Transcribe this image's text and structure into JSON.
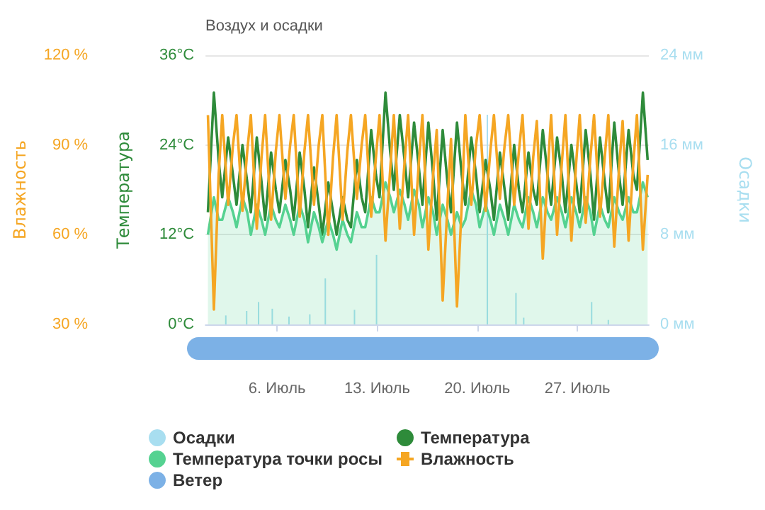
{
  "chart_data": {
    "type": "line",
    "title": "Воздух и осадки",
    "ylabel": "Температура",
    "y2label": "Осадки",
    "y3label": "Влажность",
    "x": [
      "--07-01T04:00",
      "--07-01T14:00",
      "--07-01T22:00",
      "--07-02T04:00",
      "--07-02T14:00",
      "--07-02T22:00",
      "--07-03T04:00",
      "--07-03T14:00",
      "--07-03T22:00",
      "--07-04T04:00",
      "--07-04T14:00",
      "--07-04T22:00",
      "--07-05T04:00",
      "--07-05T14:00",
      "--07-05T22:00",
      "--07-06T04:00",
      "--07-06T14:00",
      "--07-06T22:00",
      "--07-07T04:00",
      "--07-07T14:00",
      "--07-07T22:00",
      "--07-08T04:00",
      "--07-08T14:00",
      "--07-08T22:00",
      "--07-09T04:00",
      "--07-09T14:00",
      "--07-09T22:00",
      "--07-10T04:00",
      "--07-10T14:00",
      "--07-10T22:00",
      "--07-11T04:00",
      "--07-11T14:00",
      "--07-11T22:00",
      "--07-12T04:00",
      "--07-12T14:00",
      "--07-12T22:00",
      "--07-13T04:00",
      "--07-13T14:00",
      "--07-13T22:00",
      "--07-14T04:00",
      "--07-14T14:00",
      "--07-14T22:00",
      "--07-15T04:00",
      "--07-15T14:00",
      "--07-15T22:00",
      "--07-16T04:00",
      "--07-16T14:00",
      "--07-16T22:00",
      "--07-17T04:00",
      "--07-17T14:00",
      "--07-17T22:00",
      "--07-18T04:00",
      "--07-18T14:00",
      "--07-18T22:00",
      "--07-19T04:00",
      "--07-19T14:00",
      "--07-19T22:00",
      "--07-20T04:00",
      "--07-20T14:00",
      "--07-20T22:00",
      "--07-21T04:00",
      "--07-21T14:00",
      "--07-21T22:00",
      "--07-22T04:00",
      "--07-22T14:00",
      "--07-22T22:00",
      "--07-23T04:00",
      "--07-23T14:00",
      "--07-23T22:00",
      "--07-24T04:00",
      "--07-24T14:00",
      "--07-24T22:00",
      "--07-25T04:00",
      "--07-25T14:00",
      "--07-25T22:00",
      "--07-26T04:00",
      "--07-26T14:00",
      "--07-26T22:00",
      "--07-27T04:00",
      "--07-27T14:00",
      "--07-27T22:00",
      "--07-28T04:00",
      "--07-28T14:00",
      "--07-28T22:00",
      "--07-29T04:00",
      "--07-29T14:00",
      "--07-29T22:00",
      "--07-30T04:00",
      "--07-30T14:00",
      "--07-30T22:00",
      "--07-31T04:00",
      "--07-31T14:00",
      "--07-31T22:00"
    ],
    "series": [
      {
        "name": "Осадки",
        "type": "bar",
        "axis": "y2",
        "color": "#a8def0",
        "x": [
          "--07-02T10:00",
          "--07-03T21:00",
          "--07-04T17:00",
          "--07-05T16:00",
          "--07-06T20:00",
          "--07-08T07:00",
          "--07-09T09:00",
          "--07-11T10:00",
          "--07-12T23:00",
          "--07-20T17:00",
          "--07-22T17:00",
          "--07-23T06:00",
          "--07-28T00:00",
          "--07-29T04:00"
        ],
        "values": [
          0.8,
          1.2,
          2.0,
          1.4,
          0.7,
          0.9,
          4.1,
          1.3,
          6.2,
          18.7,
          2.8,
          0.6,
          2.0,
          0.4
        ]
      },
      {
        "name": "Температура",
        "axis": "y",
        "color": "#2e8b3a",
        "values": [
          15,
          31,
          22,
          17,
          25,
          20,
          16,
          24,
          19,
          15,
          25,
          19,
          14,
          23,
          18,
          15,
          22,
          18,
          14,
          23,
          18,
          13,
          21,
          16,
          12,
          19,
          15,
          12,
          17,
          14,
          13,
          22,
          17,
          15,
          26,
          20,
          17,
          31,
          23,
          18,
          28,
          22,
          17,
          27,
          21,
          16,
          27,
          20,
          14,
          26,
          19,
          15,
          27,
          20,
          16,
          25,
          20,
          15,
          22,
          18,
          14,
          23,
          18,
          14,
          24,
          18,
          15,
          23,
          18,
          16,
          26,
          20,
          16,
          25,
          20,
          15,
          24,
          19,
          15,
          26,
          20,
          14,
          25,
          19,
          15,
          27,
          20,
          16,
          26,
          20,
          18,
          31,
          22
        ]
      },
      {
        "name": "Температура точки росы",
        "type": "area",
        "axis": "y",
        "color": "#55d291",
        "values": [
          12,
          17,
          14,
          14,
          17,
          15,
          13,
          17,
          15,
          12,
          16,
          14,
          12,
          16,
          14,
          13,
          16,
          14,
          12,
          16,
          14,
          11,
          15,
          13,
          11,
          14,
          12,
          10,
          14,
          12,
          11,
          15,
          13,
          13,
          17,
          15,
          15,
          19,
          17,
          15,
          18,
          16,
          14,
          18,
          16,
          13,
          17,
          15,
          12,
          16,
          14,
          12,
          15,
          13,
          14,
          18,
          16,
          13,
          16,
          14,
          12,
          16,
          14,
          12,
          16,
          14,
          13,
          17,
          15,
          13,
          17,
          15,
          14,
          17,
          15,
          13,
          17,
          15,
          13,
          17,
          15,
          12,
          16,
          14,
          13,
          17,
          15,
          14,
          17,
          15,
          15,
          19,
          17
        ]
      },
      {
        "name": "Влажность",
        "type": "line",
        "axis": "y3",
        "color": "#f5a623",
        "values": [
          100,
          35,
          80,
          100,
          70,
          90,
          100,
          68,
          88,
          100,
          62,
          86,
          100,
          65,
          88,
          100,
          72,
          90,
          100,
          66,
          88,
          100,
          70,
          90,
          100,
          60,
          86,
          100,
          65,
          88,
          100,
          72,
          90,
          100,
          66,
          86,
          100,
          58,
          82,
          100,
          62,
          84,
          100,
          60,
          84,
          100,
          55,
          80,
          95,
          38,
          70,
          92,
          36,
          70,
          100,
          70,
          90,
          100,
          68,
          88,
          100,
          72,
          90,
          100,
          70,
          88,
          100,
          62,
          86,
          98,
          52,
          80,
          100,
          60,
          84,
          100,
          58,
          84,
          100,
          64,
          86,
          100,
          66,
          86,
          100,
          56,
          82,
          98,
          58,
          84,
          100,
          55,
          80
        ]
      },
      {
        "name": "Ветер",
        "color": "#7cb1e6",
        "values": [
          null,
          null,
          null,
          null,
          null,
          null,
          null,
          null,
          null,
          null,
          null,
          null,
          null,
          null,
          null,
          null,
          null,
          null,
          null,
          null,
          null,
          null,
          null,
          null,
          null,
          null,
          null,
          null,
          null,
          null,
          null,
          null,
          null,
          null,
          null,
          null,
          null,
          null,
          null,
          null,
          null,
          null,
          null,
          null,
          null,
          null,
          null,
          null,
          null,
          null,
          null,
          null,
          null,
          null,
          null,
          null,
          null,
          null,
          null,
          null,
          null,
          null,
          null,
          null,
          null,
          null,
          null,
          null,
          null,
          null,
          null,
          null,
          null,
          null,
          null,
          null,
          null,
          null,
          null,
          null,
          null,
          null,
          null,
          null,
          null,
          null,
          null,
          null,
          null,
          null,
          null,
          null,
          null
        ]
      }
    ],
    "xlim": [
      "--07-01",
      "--08-01"
    ],
    "xticks": [
      {
        "value": "--07-06",
        "label": "6. Июль"
      },
      {
        "value": "--07-13",
        "label": "13. Июль"
      },
      {
        "value": "--07-20",
        "label": "20. Июль"
      },
      {
        "value": "--07-27",
        "label": "27. Июль"
      }
    ],
    "ylim": [
      0,
      36
    ],
    "yticks": [
      {
        "value": 0,
        "label": "0°C"
      },
      {
        "value": 12,
        "label": "12°C"
      },
      {
        "value": 24,
        "label": "24°C"
      },
      {
        "value": 36,
        "label": "36°C"
      }
    ],
    "y2lim": [
      0,
      24
    ],
    "y2ticks": [
      {
        "value": 0,
        "label": "0 мм"
      },
      {
        "value": 8,
        "label": "8 мм"
      },
      {
        "value": 16,
        "label": "16 мм"
      },
      {
        "value": 24,
        "label": "24 мм"
      }
    ],
    "y3lim": [
      30,
      120
    ],
    "y3ticks": [
      {
        "value": 30,
        "label": "30 %"
      },
      {
        "value": 60,
        "label": "60 %"
      },
      {
        "value": 90,
        "label": "90 %"
      },
      {
        "value": 120,
        "label": "120 %"
      }
    ],
    "grid": "y",
    "legend": "bottom"
  }
}
